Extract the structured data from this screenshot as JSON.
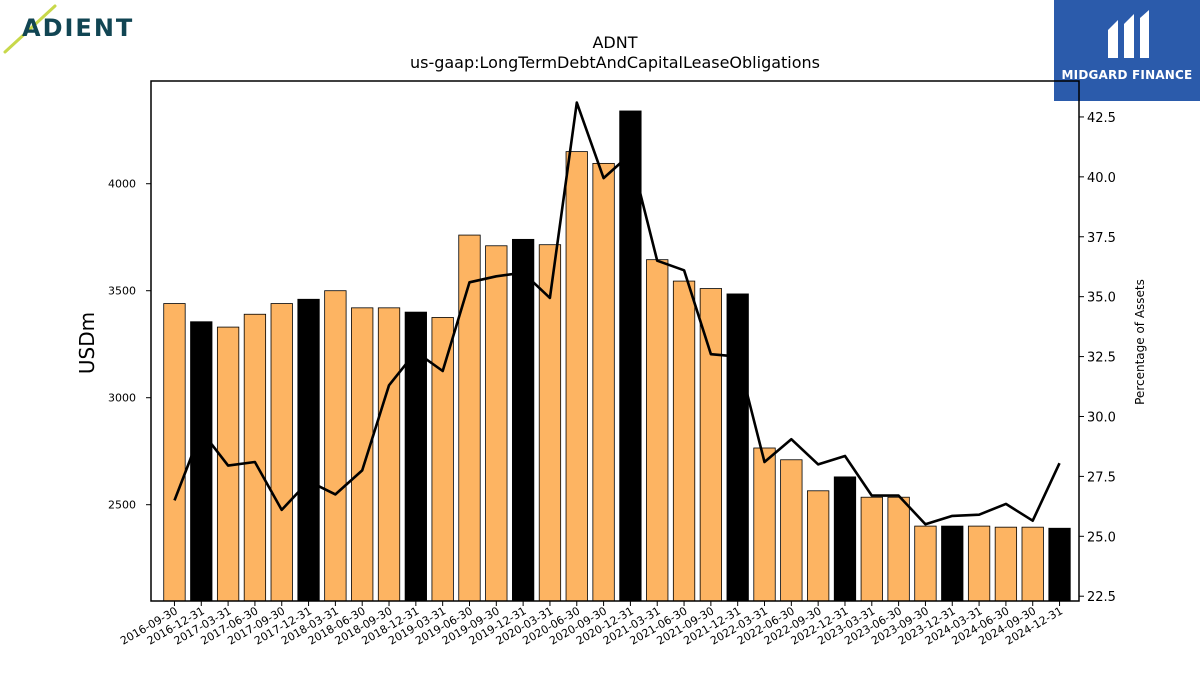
{
  "brand": {
    "left_logo_text": "ADIENT",
    "right_logo_text": "MIDGARD FINANCE",
    "accent_color": "#2b5bab",
    "left_logo_color": "#114553"
  },
  "chart_data": {
    "type": "bar",
    "title": "ADNT",
    "subtitle": "us-gaap:LongTermDebtAndCapitalLeaseObligations",
    "ylabel": "USDm",
    "y2label": "Percentage of Assets",
    "ylim": [
      2050,
      4480
    ],
    "y2lim": [
      22.3,
      44.0
    ],
    "yticks": [
      2500,
      3000,
      3500,
      4000
    ],
    "y2ticks": [
      "22.5",
      "25.0",
      "27.5",
      "30.0",
      "32.5",
      "35.0",
      "37.5",
      "40.0",
      "42.5"
    ],
    "grid": false,
    "bar_color": "#fdb462",
    "highlight_color": "#000000",
    "line_color": "#000000",
    "categories": [
      "2016-09-30",
      "2016-12-31",
      "2017-03-31",
      "2017-06-30",
      "2017-09-30",
      "2017-12-31",
      "2018-03-31",
      "2018-06-30",
      "2018-09-30",
      "2018-12-31",
      "2019-03-31",
      "2019-06-30",
      "2019-09-30",
      "2019-12-31",
      "2020-03-31",
      "2020-06-30",
      "2020-09-30",
      "2020-12-31",
      "2021-03-31",
      "2021-06-30",
      "2021-09-30",
      "2021-12-31",
      "2022-03-31",
      "2022-06-30",
      "2022-09-30",
      "2022-12-31",
      "2023-03-31",
      "2023-06-30",
      "2023-09-30",
      "2023-12-31",
      "2024-03-31",
      "2024-06-30",
      "2024-09-30",
      "2024-12-31"
    ],
    "series": [
      {
        "values": [
          3440,
          3355,
          3330,
          3390,
          3440,
          3460,
          3500,
          3420,
          3420,
          3400,
          3375,
          3760,
          3710,
          3740,
          3715,
          4150,
          4095,
          4340,
          3645,
          3545,
          3510,
          3485,
          2765,
          2710,
          2565,
          2630,
          2535,
          2535,
          2400,
          2400,
          2400,
          2395,
          2395,
          2390
        ],
        "highlight": [
          false,
          true,
          false,
          false,
          false,
          true,
          false,
          false,
          false,
          true,
          false,
          false,
          false,
          true,
          false,
          false,
          false,
          true,
          false,
          false,
          false,
          true,
          false,
          false,
          false,
          true,
          false,
          false,
          false,
          true,
          false,
          false,
          false,
          true
        ]
      },
      {
        "axis": "right",
        "values": [
          26.5,
          29.4,
          27.95,
          28.1,
          26.1,
          27.3,
          26.75,
          27.75,
          31.3,
          32.7,
          31.9,
          35.6,
          35.85,
          36.0,
          34.95,
          43.1,
          39.95,
          40.95,
          36.5,
          36.1,
          32.6,
          32.5,
          28.1,
          29.05,
          28.0,
          28.35,
          26.7,
          26.7,
          25.5,
          25.85,
          25.9,
          26.35,
          25.65,
          28.05
        ]
      }
    ]
  }
}
